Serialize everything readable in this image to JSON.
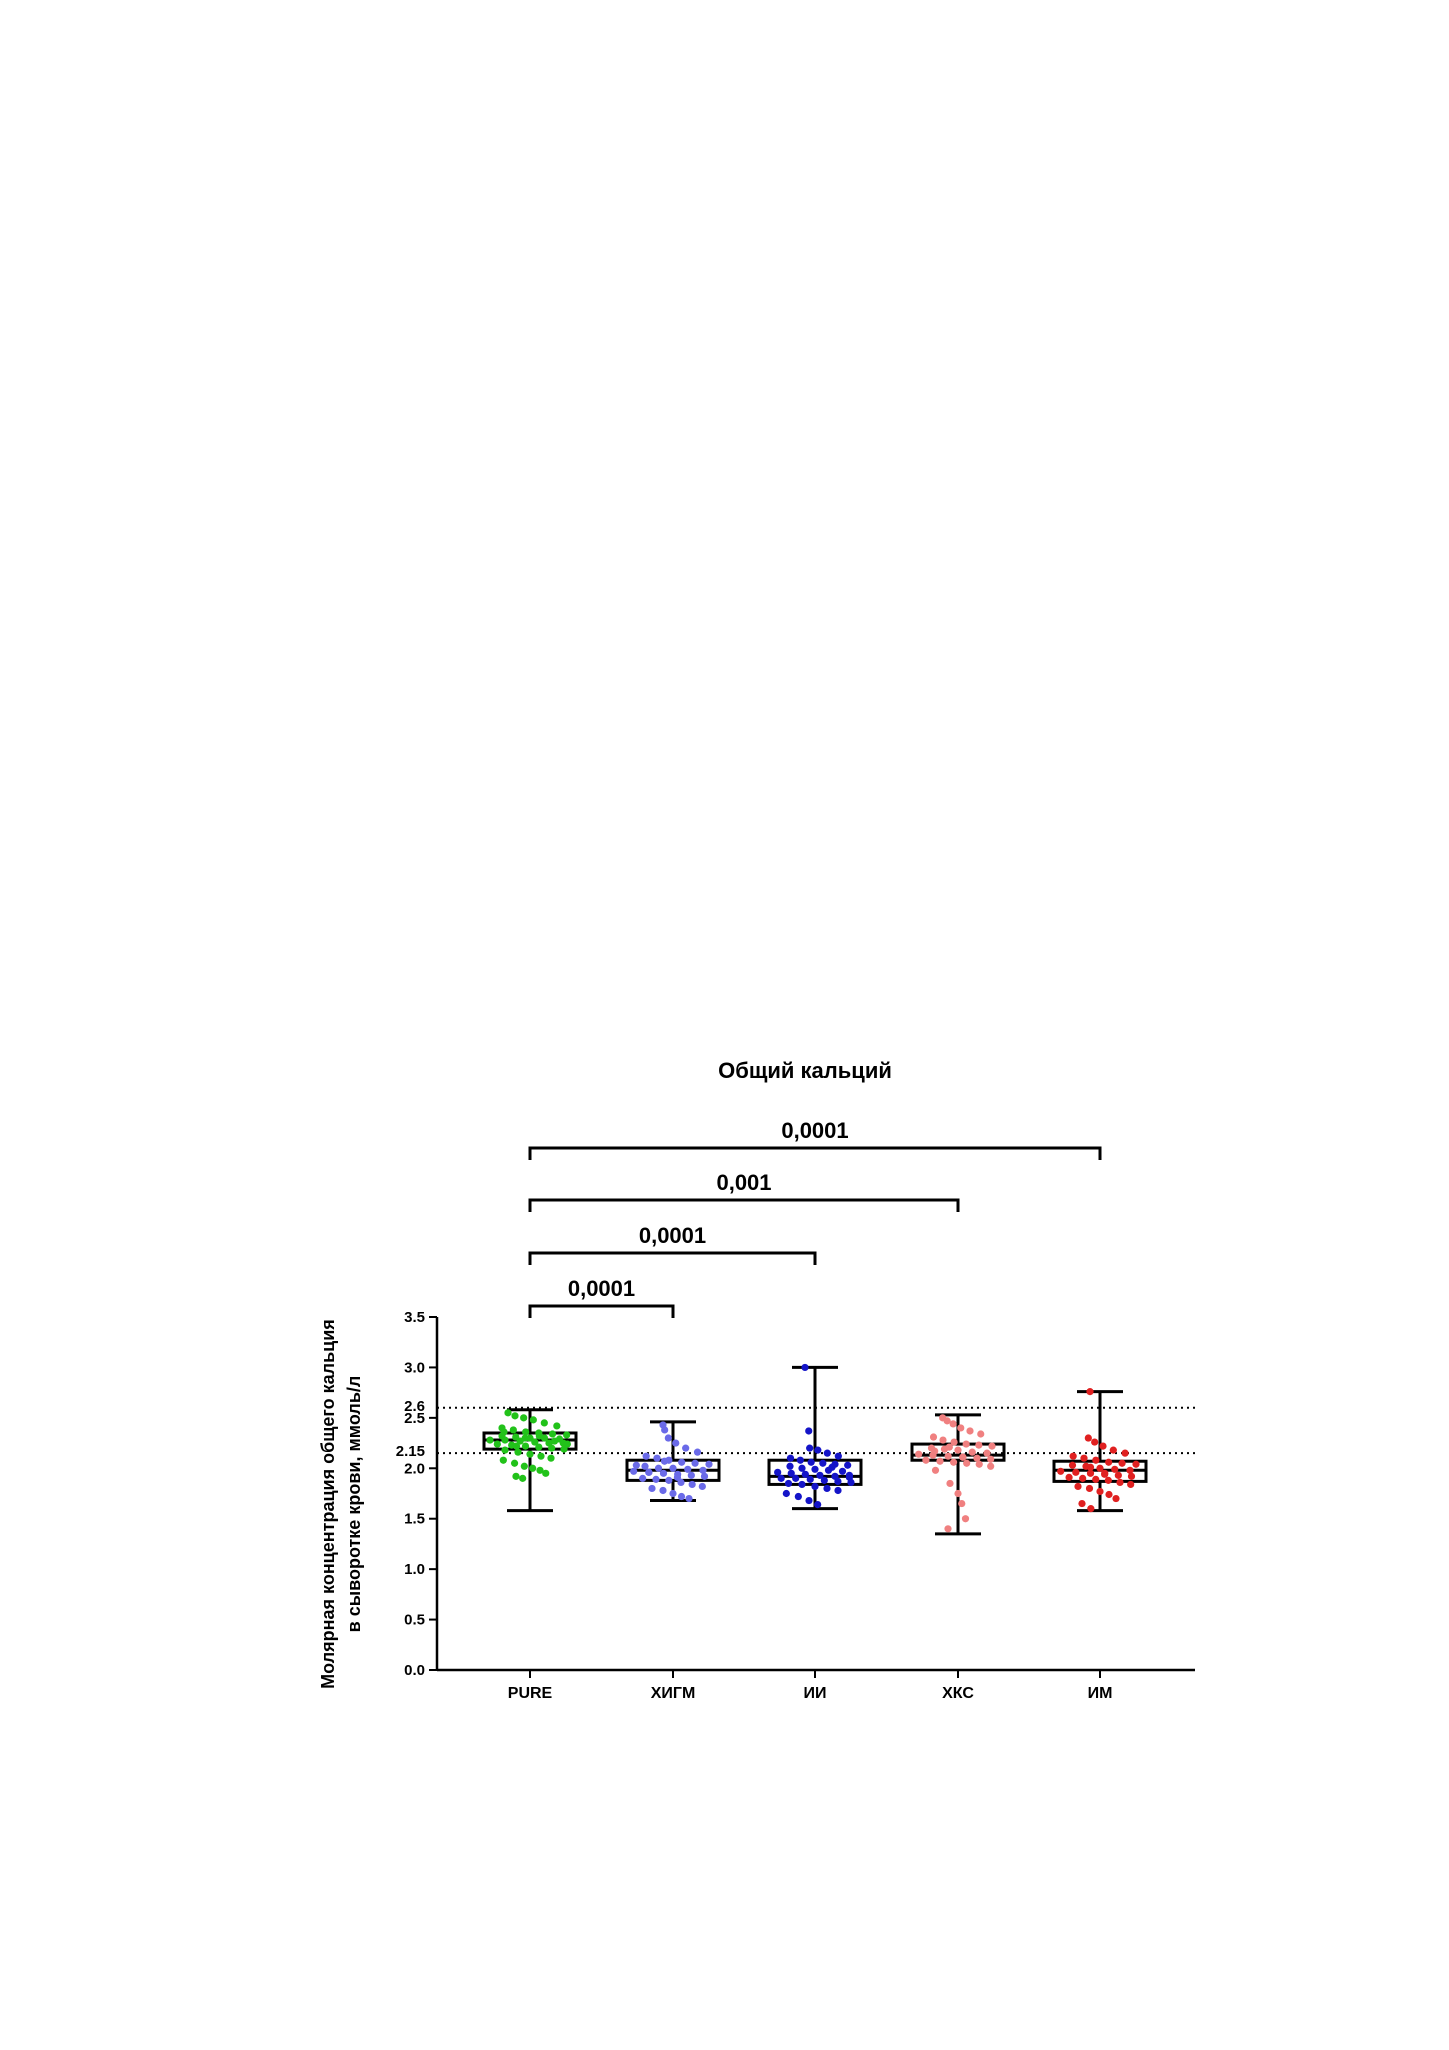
{
  "chart_data": {
    "type": "box",
    "title": "Общий кальций",
    "ylabel_line1": "Молярная концентрация общего кальция",
    "ylabel_line2": "в сыворотке крови, ммоль/л",
    "ylim": [
      0,
      3.5
    ],
    "yticks": [
      "0.0",
      "0.5",
      "1.0",
      "1.5",
      "2.0",
      "2.5",
      "3.0",
      "3.5"
    ],
    "reference_lines": [
      {
        "value": 2.6,
        "label": "2.6"
      },
      {
        "value": 2.15,
        "label": "2.15"
      }
    ],
    "categories": [
      "PURE",
      "ХИГМ",
      "ИИ",
      "ХКС",
      "ИМ"
    ],
    "colors": [
      "#22c21a",
      "#6a6ae8",
      "#1414c8",
      "#f08080",
      "#e02020"
    ],
    "boxes": [
      {
        "min": 1.58,
        "q1": 2.19,
        "median": 2.28,
        "q3": 2.35,
        "max": 2.58,
        "points": [
          2.55,
          2.52,
          2.5,
          2.48,
          2.45,
          2.42,
          2.4,
          2.38,
          2.36,
          2.35,
          2.34,
          2.33,
          2.32,
          2.31,
          2.3,
          2.3,
          2.29,
          2.28,
          2.28,
          2.27,
          2.26,
          2.25,
          2.25,
          2.24,
          2.23,
          2.22,
          2.21,
          2.2,
          2.19,
          2.18,
          2.16,
          2.14,
          2.12,
          2.1,
          2.08,
          2.05,
          2.02,
          2.0,
          1.98,
          1.95,
          1.92,
          1.9,
          2.3,
          2.32,
          2.27,
          2.24,
          2.36,
          2.22
        ]
      },
      {
        "min": 1.68,
        "q1": 1.88,
        "median": 1.98,
        "q3": 2.08,
        "max": 2.46,
        "points": [
          2.43,
          2.38,
          2.3,
          2.25,
          2.2,
          2.16,
          2.12,
          2.1,
          2.08,
          2.06,
          2.05,
          2.04,
          2.02,
          2.0,
          2.0,
          1.99,
          1.98,
          1.97,
          1.96,
          1.95,
          1.94,
          1.93,
          1.92,
          1.9,
          1.89,
          1.88,
          1.86,
          1.84,
          1.82,
          1.8,
          1.78,
          1.75,
          1.72,
          1.7,
          2.03,
          1.96,
          2.07,
          1.91
        ]
      },
      {
        "min": 1.6,
        "q1": 1.84,
        "median": 1.92,
        "q3": 2.08,
        "max": 3.0,
        "points": [
          3.0,
          2.37,
          2.2,
          2.18,
          2.15,
          2.12,
          2.1,
          2.08,
          2.06,
          2.05,
          2.04,
          2.03,
          2.02,
          2.0,
          1.99,
          1.98,
          1.97,
          1.96,
          1.95,
          1.94,
          1.93,
          1.92,
          1.91,
          1.9,
          1.9,
          1.89,
          1.88,
          1.87,
          1.86,
          1.85,
          1.84,
          1.82,
          1.8,
          1.78,
          1.75,
          1.72,
          1.68,
          1.64,
          2.01,
          1.93
        ]
      },
      {
        "min": 1.35,
        "q1": 2.08,
        "median": 2.13,
        "q3": 2.24,
        "max": 2.53,
        "points": [
          2.5,
          2.47,
          2.44,
          2.4,
          2.37,
          2.34,
          2.31,
          2.28,
          2.26,
          2.24,
          2.23,
          2.22,
          2.2,
          2.19,
          2.18,
          2.16,
          2.15,
          2.14,
          2.13,
          2.12,
          2.11,
          2.1,
          2.09,
          2.08,
          2.07,
          2.06,
          2.05,
          2.04,
          2.02,
          1.98,
          1.85,
          1.75,
          1.65,
          1.5,
          1.4,
          2.17,
          2.21,
          2.11
        ]
      },
      {
        "min": 1.58,
        "q1": 1.87,
        "median": 1.98,
        "q3": 2.07,
        "max": 2.76,
        "points": [
          2.76,
          2.3,
          2.26,
          2.22,
          2.18,
          2.15,
          2.12,
          2.1,
          2.08,
          2.06,
          2.05,
          2.04,
          2.03,
          2.02,
          2.0,
          1.99,
          1.98,
          1.97,
          1.96,
          1.95,
          1.94,
          1.93,
          1.92,
          1.91,
          1.9,
          1.89,
          1.88,
          1.86,
          1.84,
          1.82,
          1.8,
          1.77,
          1.74,
          1.7,
          1.65,
          1.6,
          2.01,
          1.95
        ]
      }
    ],
    "significance": [
      {
        "from": "PURE",
        "to": "ИМ",
        "label": "0,0001"
      },
      {
        "from": "PURE",
        "to": "ХКС",
        "label": "0,001"
      },
      {
        "from": "PURE",
        "to": "ИИ",
        "label": "0,0001"
      },
      {
        "from": "PURE",
        "to": "ХИГМ",
        "label": "0,0001"
      }
    ]
  }
}
